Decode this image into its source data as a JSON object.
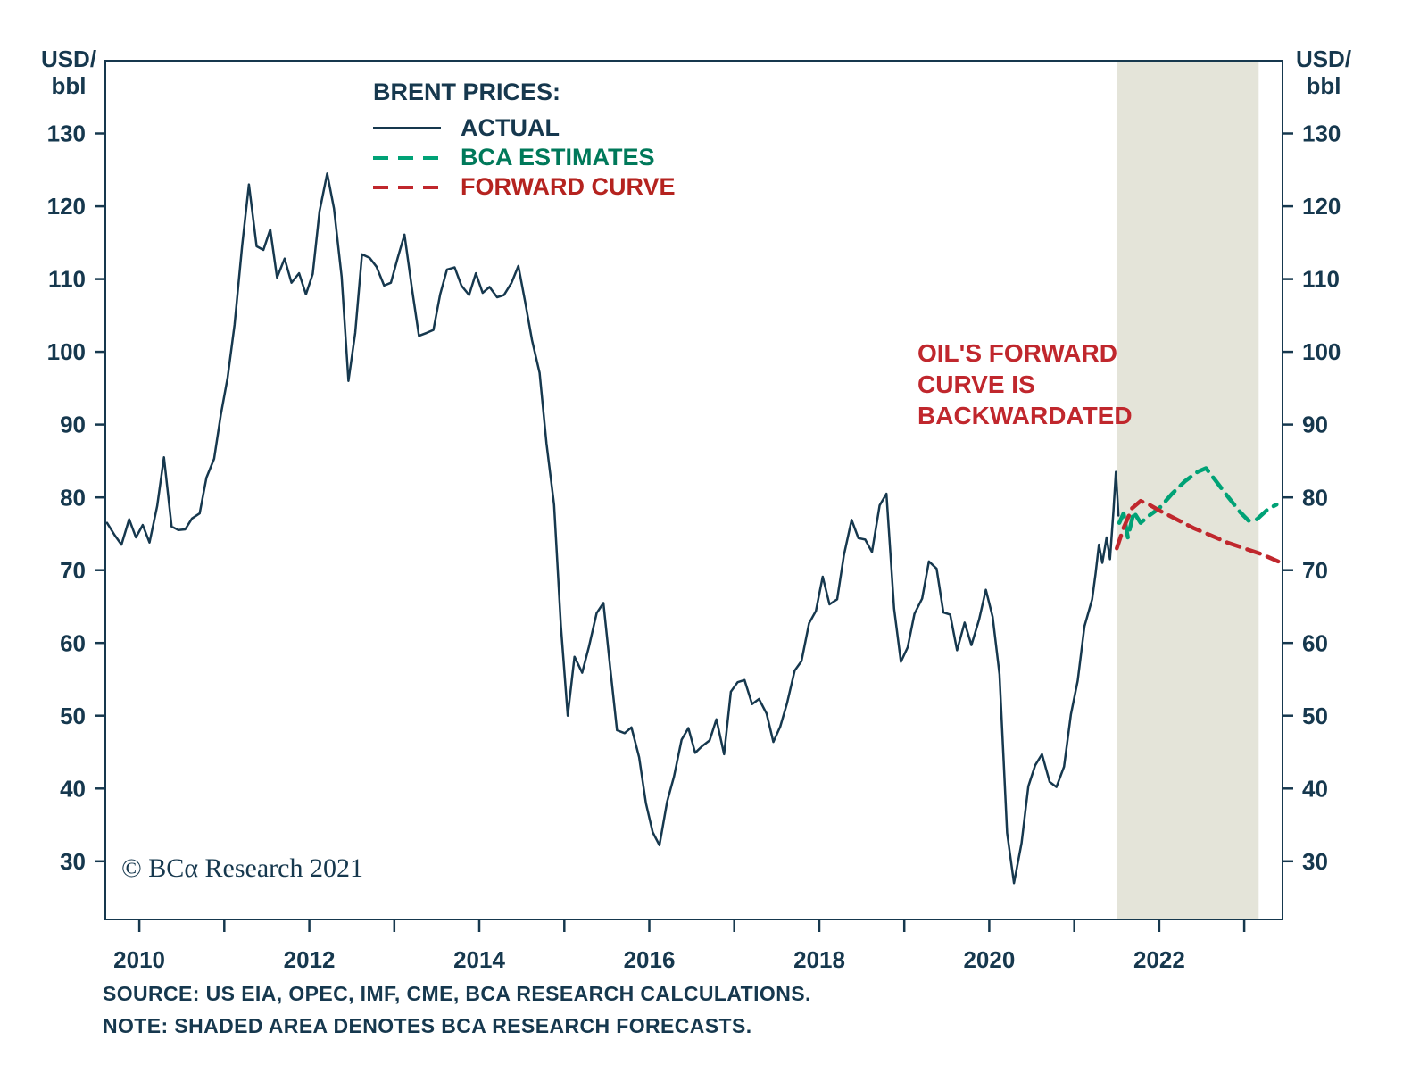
{
  "axis_units": {
    "left": "USD/\nbbl",
    "right": "USD/\nbbl"
  },
  "legend": {
    "title": "BRENT PRICES:",
    "items": [
      {
        "label": "ACTUAL",
        "style": "solid",
        "color": "#16384E",
        "text_color": "#16384E"
      },
      {
        "label": "BCA ESTIMATES",
        "style": "dashed",
        "color": "#00A276",
        "text_color": "#00795A"
      },
      {
        "label": "FORWARD CURVE",
        "style": "dashed",
        "color": "#C0272D",
        "text_color": "#B5231F"
      }
    ]
  },
  "annotation": {
    "text": "OIL'S FORWARD\nCURVE IS\nBACKWARDATED",
    "color": "#C0272D"
  },
  "copyright": "© BCα Research 2021",
  "footer": {
    "source": "SOURCE: US EIA, OPEC, IMF, CME, BCA RESEARCH CALCULATIONS.",
    "note": "NOTE: SHADED AREA DENOTES BCA RESEARCH FORECASTS."
  },
  "chart_data": {
    "type": "line",
    "title": "BRENT PRICES",
    "ylabel": "USD/bbl",
    "axis_color": "#16384E",
    "grid": false,
    "legend_position": "top-left-inside",
    "ylim": [
      22,
      140
    ],
    "xlim": [
      2009.6,
      2023.45
    ],
    "yticks": [
      30,
      40,
      50,
      60,
      70,
      80,
      90,
      100,
      110,
      120,
      130
    ],
    "xticks": [
      2010,
      2012,
      2014,
      2016,
      2018,
      2020,
      2022
    ],
    "xticks_minor": [
      2010,
      2011,
      2012,
      2013,
      2014,
      2015,
      2016,
      2017,
      2018,
      2019,
      2020,
      2021,
      2022,
      2023
    ],
    "forecast_shading": {
      "start": 2021.5,
      "end": 2023.17,
      "color": "#E4E4D9"
    },
    "series": [
      {
        "name": "ACTUAL",
        "color": "#16384E",
        "dash": null,
        "width": 2.5,
        "points": [
          [
            2009.62,
            76.5
          ],
          [
            2009.71,
            74.8
          ],
          [
            2009.79,
            73.5
          ],
          [
            2009.88,
            77
          ],
          [
            2009.96,
            74.5
          ],
          [
            2010.04,
            76.2
          ],
          [
            2010.12,
            73.8
          ],
          [
            2010.21,
            78.8
          ],
          [
            2010.29,
            85.5
          ],
          [
            2010.38,
            76
          ],
          [
            2010.46,
            75.5
          ],
          [
            2010.54,
            75.6
          ],
          [
            2010.62,
            77.1
          ],
          [
            2010.71,
            77.8
          ],
          [
            2010.79,
            82.7
          ],
          [
            2010.88,
            85.3
          ],
          [
            2010.96,
            91.4
          ],
          [
            2011.04,
            96.5
          ],
          [
            2011.12,
            103.7
          ],
          [
            2011.21,
            114.6
          ],
          [
            2011.29,
            123
          ],
          [
            2011.38,
            114.5
          ],
          [
            2011.46,
            114
          ],
          [
            2011.54,
            116.8
          ],
          [
            2011.62,
            110.2
          ],
          [
            2011.71,
            112.8
          ],
          [
            2011.79,
            109.5
          ],
          [
            2011.88,
            110.8
          ],
          [
            2011.96,
            107.9
          ],
          [
            2012.04,
            110.7
          ],
          [
            2012.12,
            119.3
          ],
          [
            2012.21,
            124.5
          ],
          [
            2012.29,
            119.7
          ],
          [
            2012.38,
            110.3
          ],
          [
            2012.46,
            96
          ],
          [
            2012.54,
            102.6
          ],
          [
            2012.62,
            113.4
          ],
          [
            2012.71,
            112.9
          ],
          [
            2012.79,
            111.7
          ],
          [
            2012.88,
            109.1
          ],
          [
            2012.96,
            109.5
          ],
          [
            2013.04,
            112.9
          ],
          [
            2013.12,
            116.1
          ],
          [
            2013.21,
            108.5
          ],
          [
            2013.29,
            102.2
          ],
          [
            2013.38,
            102.6
          ],
          [
            2013.46,
            103
          ],
          [
            2013.54,
            107.9
          ],
          [
            2013.62,
            111.3
          ],
          [
            2013.71,
            111.6
          ],
          [
            2013.79,
            109.1
          ],
          [
            2013.88,
            107.8
          ],
          [
            2013.96,
            110.8
          ],
          [
            2014.04,
            108.1
          ],
          [
            2014.12,
            108.9
          ],
          [
            2014.21,
            107.5
          ],
          [
            2014.29,
            107.8
          ],
          [
            2014.38,
            109.5
          ],
          [
            2014.46,
            111.8
          ],
          [
            2014.54,
            106.8
          ],
          [
            2014.62,
            101.6
          ],
          [
            2014.71,
            97.1
          ],
          [
            2014.79,
            87.4
          ],
          [
            2014.88,
            79
          ],
          [
            2014.96,
            62.3
          ],
          [
            2015.04,
            50
          ],
          [
            2015.12,
            58.1
          ],
          [
            2015.21,
            55.9
          ],
          [
            2015.29,
            59.5
          ],
          [
            2015.38,
            64.1
          ],
          [
            2015.46,
            65.5
          ],
          [
            2015.54,
            56.6
          ],
          [
            2015.62,
            48
          ],
          [
            2015.71,
            47.6
          ],
          [
            2015.79,
            48.4
          ],
          [
            2015.88,
            44.3
          ],
          [
            2015.96,
            38
          ],
          [
            2016.04,
            34
          ],
          [
            2016.12,
            32.2
          ],
          [
            2016.21,
            38.2
          ],
          [
            2016.29,
            41.6
          ],
          [
            2016.38,
            46.7
          ],
          [
            2016.46,
            48.3
          ],
          [
            2016.54,
            44.9
          ],
          [
            2016.62,
            45.8
          ],
          [
            2016.71,
            46.6
          ],
          [
            2016.79,
            49.5
          ],
          [
            2016.88,
            44.7
          ],
          [
            2016.96,
            53.3
          ],
          [
            2017.04,
            54.6
          ],
          [
            2017.12,
            54.9
          ],
          [
            2017.21,
            51.6
          ],
          [
            2017.29,
            52.3
          ],
          [
            2017.38,
            50.3
          ],
          [
            2017.46,
            46.4
          ],
          [
            2017.54,
            48.5
          ],
          [
            2017.62,
            51.7
          ],
          [
            2017.71,
            56.2
          ],
          [
            2017.79,
            57.5
          ],
          [
            2017.88,
            62.7
          ],
          [
            2017.96,
            64.4
          ],
          [
            2018.04,
            69.1
          ],
          [
            2018.12,
            65.3
          ],
          [
            2018.21,
            66
          ],
          [
            2018.29,
            72.1
          ],
          [
            2018.38,
            76.9
          ],
          [
            2018.46,
            74.4
          ],
          [
            2018.54,
            74.2
          ],
          [
            2018.62,
            72.5
          ],
          [
            2018.71,
            78.9
          ],
          [
            2018.79,
            80.5
          ],
          [
            2018.88,
            64.7
          ],
          [
            2018.96,
            57.4
          ],
          [
            2019.04,
            59.4
          ],
          [
            2019.12,
            64
          ],
          [
            2019.21,
            66.1
          ],
          [
            2019.29,
            71.2
          ],
          [
            2019.38,
            70.2
          ],
          [
            2019.46,
            64.2
          ],
          [
            2019.54,
            63.9
          ],
          [
            2019.62,
            59
          ],
          [
            2019.71,
            62.8
          ],
          [
            2019.79,
            59.7
          ],
          [
            2019.88,
            63.2
          ],
          [
            2019.96,
            67.3
          ],
          [
            2020.04,
            63.6
          ],
          [
            2020.12,
            55.7
          ],
          [
            2020.21,
            33.9
          ],
          [
            2020.29,
            27
          ],
          [
            2020.38,
            32.5
          ],
          [
            2020.46,
            40.3
          ],
          [
            2020.54,
            43.2
          ],
          [
            2020.62,
            44.7
          ],
          [
            2020.71,
            40.9
          ],
          [
            2020.79,
            40.2
          ],
          [
            2020.88,
            43
          ],
          [
            2020.96,
            50.2
          ],
          [
            2021.04,
            54.8
          ],
          [
            2021.12,
            62.3
          ],
          [
            2021.21,
            66
          ],
          [
            2021.25,
            69.5
          ],
          [
            2021.29,
            73.5
          ],
          [
            2021.33,
            71
          ],
          [
            2021.38,
            74.5
          ],
          [
            2021.42,
            71.5
          ],
          [
            2021.46,
            78
          ],
          [
            2021.49,
            83.5
          ],
          [
            2021.52,
            77.5
          ]
        ]
      },
      {
        "name": "BCA ESTIMATES",
        "color": "#00A276",
        "dash": "15 9",
        "width": 4.5,
        "points": [
          [
            2021.53,
            76.5
          ],
          [
            2021.58,
            77.8
          ],
          [
            2021.63,
            74.5
          ],
          [
            2021.7,
            78
          ],
          [
            2021.78,
            76.5
          ],
          [
            2021.88,
            77.5
          ],
          [
            2022.0,
            78.5
          ],
          [
            2022.15,
            80.5
          ],
          [
            2022.3,
            82.2
          ],
          [
            2022.45,
            83.5
          ],
          [
            2022.55,
            84
          ],
          [
            2022.65,
            82.5
          ],
          [
            2022.8,
            80.2
          ],
          [
            2022.95,
            78
          ],
          [
            2023.05,
            76.8
          ],
          [
            2023.15,
            77
          ],
          [
            2023.28,
            78.4
          ],
          [
            2023.38,
            79
          ]
        ]
      },
      {
        "name": "FORWARD CURVE",
        "color": "#C0272D",
        "dash": "15 9",
        "width": 4.5,
        "points": [
          [
            2021.5,
            73
          ],
          [
            2021.58,
            75.8
          ],
          [
            2021.68,
            78.5
          ],
          [
            2021.78,
            79.5
          ],
          [
            2021.88,
            79
          ],
          [
            2022.0,
            78.2
          ],
          [
            2022.2,
            77
          ],
          [
            2022.4,
            75.8
          ],
          [
            2022.6,
            74.8
          ],
          [
            2022.8,
            73.8
          ],
          [
            2023.0,
            73
          ],
          [
            2023.2,
            72.2
          ],
          [
            2023.4,
            71.2
          ]
        ]
      }
    ]
  }
}
